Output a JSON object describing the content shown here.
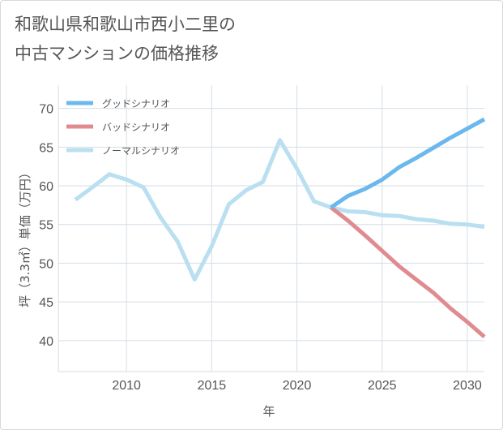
{
  "chart_data": {
    "type": "line",
    "title_line1": "和歌山県和歌山市西小二里の",
    "title_line2": "中古マンションの価格推移",
    "xlabel": "年",
    "ylabel": "坪（3.3㎡）単価（万円）",
    "xlim": [
      2006,
      2031
    ],
    "ylim": [
      36,
      73
    ],
    "x_ticks": [
      2010,
      2015,
      2020,
      2025,
      2030
    ],
    "y_ticks": [
      40,
      45,
      50,
      55,
      60,
      65,
      70
    ],
    "grid": true,
    "legend_position": "top-left",
    "series": [
      {
        "name": "グッドシナリオ",
        "color": "#6cb8ec",
        "x": [
          2022,
          2023,
          2024,
          2025,
          2026,
          2027,
          2028,
          2029,
          2030,
          2031
        ],
        "y": [
          57.2,
          58.7,
          59.6,
          60.8,
          62.4,
          63.6,
          64.9,
          66.2,
          67.4,
          68.6
        ]
      },
      {
        "name": "バッドシナリオ",
        "color": "#e08b8f",
        "x": [
          2022,
          2023,
          2024,
          2025,
          2026,
          2027,
          2028,
          2029,
          2030,
          2031
        ],
        "y": [
          57.2,
          55.5,
          53.6,
          51.6,
          49.6,
          47.9,
          46.2,
          44.2,
          42.4,
          40.5
        ]
      },
      {
        "name": "ノーマルシナリオ",
        "color": "#b9dff0",
        "x": [
          2007,
          2008,
          2009,
          2010,
          2011,
          2012,
          2013,
          2014,
          2015,
          2016,
          2017,
          2018,
          2019,
          2020,
          2021,
          2022,
          2023,
          2024,
          2025,
          2026,
          2027,
          2028,
          2029,
          2030,
          2031
        ],
        "y": [
          58.2,
          59.8,
          61.5,
          60.8,
          59.8,
          55.9,
          52.8,
          47.9,
          52.2,
          57.6,
          59.4,
          60.5,
          65.9,
          62.2,
          58.0,
          57.2,
          56.7,
          56.6,
          56.2,
          56.1,
          55.7,
          55.5,
          55.1,
          55.0,
          54.7
        ]
      }
    ]
  }
}
